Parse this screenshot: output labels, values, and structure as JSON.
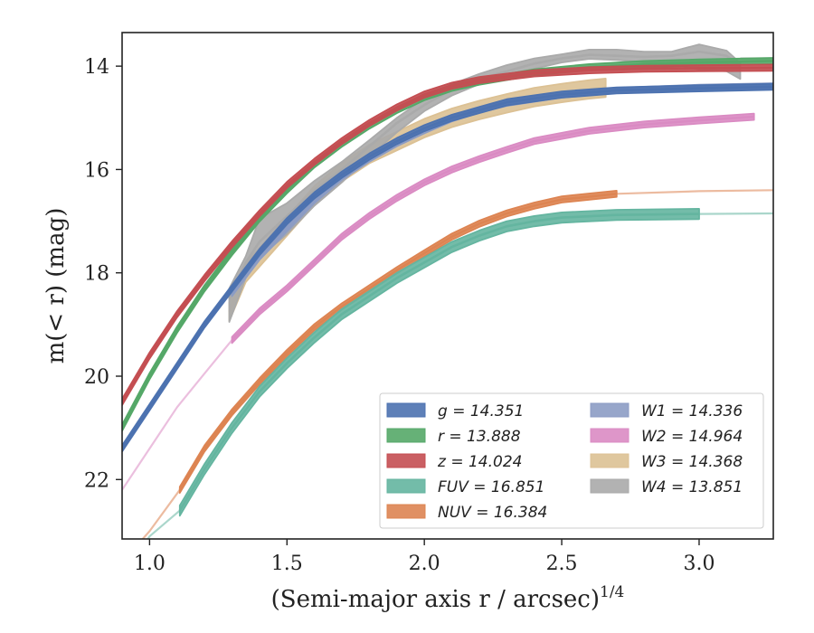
{
  "chart_data": {
    "type": "line",
    "xlabel": "(Semi-major axis r / arcsec)",
    "xlabel_sup": "1/4",
    "ylabel": "m(< r) (mag)",
    "xlim": [
      0.9,
      3.27
    ],
    "ylim": [
      23.15,
      13.35
    ],
    "y_inverted": true,
    "grid": false,
    "legend_placement": "lower-right",
    "x_ticks": [
      "1.0",
      "1.5",
      "2.0",
      "2.5",
      "3.0"
    ],
    "y_ticks": [
      "14",
      "16",
      "18",
      "20",
      "22"
    ],
    "legend": [
      "g = 14.351",
      "r = 13.888",
      "z = 14.024",
      "FUV = 16.851",
      "NUV = 16.384",
      "W1 = 14.336",
      "W2 = 14.964",
      "W3 = 14.368",
      "W4 = 13.851"
    ],
    "series": [
      {
        "name": "g = 14.351",
        "color": "#4c72b0",
        "band": 0.06,
        "solid_range": [
          0.9,
          3.27
        ],
        "x": [
          0.9,
          1.0,
          1.1,
          1.2,
          1.3,
          1.4,
          1.5,
          1.6,
          1.7,
          1.8,
          1.9,
          2.0,
          2.1,
          2.2,
          2.3,
          2.5,
          2.7,
          3.0,
          3.27
        ],
        "y": [
          21.4,
          20.6,
          19.8,
          19.0,
          18.3,
          17.6,
          17.0,
          16.5,
          16.1,
          15.75,
          15.45,
          15.2,
          15.0,
          14.85,
          14.7,
          14.55,
          14.47,
          14.43,
          14.4
        ]
      },
      {
        "name": "r = 13.888",
        "color": "#55a868",
        "band": 0.06,
        "solid_range": [
          0.9,
          3.27
        ],
        "x": [
          0.9,
          1.0,
          1.1,
          1.2,
          1.3,
          1.4,
          1.5,
          1.6,
          1.7,
          1.8,
          1.9,
          2.0,
          2.1,
          2.2,
          2.4,
          2.6,
          2.8,
          3.0,
          3.27
        ],
        "y": [
          21.0,
          20.0,
          19.1,
          18.3,
          17.6,
          16.95,
          16.4,
          15.9,
          15.5,
          15.15,
          14.85,
          14.6,
          14.42,
          14.3,
          14.12,
          14.02,
          13.96,
          13.93,
          13.9
        ]
      },
      {
        "name": "z = 14.024",
        "color": "#c44e52",
        "band": 0.06,
        "solid_range": [
          0.9,
          3.27
        ],
        "x": [
          0.9,
          1.0,
          1.1,
          1.2,
          1.3,
          1.4,
          1.5,
          1.6,
          1.7,
          1.8,
          1.9,
          2.0,
          2.1,
          2.2,
          2.4,
          2.6,
          2.8,
          3.0,
          3.27
        ],
        "y": [
          20.5,
          19.6,
          18.8,
          18.1,
          17.45,
          16.85,
          16.3,
          15.85,
          15.45,
          15.1,
          14.8,
          14.55,
          14.38,
          14.27,
          14.14,
          14.08,
          14.05,
          14.04,
          14.03
        ]
      },
      {
        "name": "FUV = 16.851",
        "color": "#64b5a0",
        "band": 0.1,
        "solid_range": [
          1.11,
          3.13
        ],
        "x": [
          0.95,
          1.0,
          1.11,
          1.2,
          1.3,
          1.4,
          1.5,
          1.6,
          1.7,
          1.8,
          1.9,
          2.0,
          2.1,
          2.2,
          2.3,
          2.4,
          2.5,
          2.7,
          3.0,
          3.27
        ],
        "y": [
          23.5,
          23.1,
          22.6,
          21.8,
          21.0,
          20.3,
          19.75,
          19.25,
          18.8,
          18.45,
          18.1,
          17.8,
          17.5,
          17.28,
          17.1,
          17.0,
          16.93,
          16.88,
          16.86,
          16.85
        ]
      },
      {
        "name": "NUV = 16.384",
        "color": "#dd8452",
        "band": 0.06,
        "solid_range": [
          1.11,
          2.95
        ],
        "x": [
          0.9,
          1.0,
          1.11,
          1.2,
          1.3,
          1.4,
          1.5,
          1.6,
          1.7,
          1.8,
          1.9,
          2.0,
          2.1,
          2.2,
          2.3,
          2.4,
          2.5,
          2.7,
          3.0,
          3.27
        ],
        "y": [
          23.6,
          23.0,
          22.2,
          21.4,
          20.7,
          20.1,
          19.55,
          19.05,
          18.65,
          18.3,
          17.95,
          17.62,
          17.3,
          17.05,
          16.85,
          16.7,
          16.58,
          16.47,
          16.42,
          16.4
        ]
      },
      {
        "name": "W1 = 14.336",
        "color": "#8c9cc4",
        "band": 0.05,
        "solid_range": [
          1.3,
          3.27
        ],
        "x": [
          1.3,
          1.4,
          1.5,
          1.6,
          1.7,
          1.8,
          1.9,
          2.0,
          2.1,
          2.2,
          2.3,
          2.5,
          2.7,
          3.0,
          3.27
        ],
        "y": [
          18.4,
          17.7,
          17.15,
          16.6,
          16.15,
          15.8,
          15.5,
          15.25,
          15.02,
          14.85,
          14.72,
          14.56,
          14.47,
          14.41,
          14.38
        ]
      },
      {
        "name": "W2 = 14.964",
        "color": "#da8bc3",
        "band": 0.06,
        "solid_range": [
          1.3,
          3.2
        ],
        "x": [
          0.9,
          1.0,
          1.1,
          1.2,
          1.3,
          1.4,
          1.5,
          1.6,
          1.7,
          1.8,
          1.9,
          2.0,
          2.1,
          2.2,
          2.3,
          2.4,
          2.6,
          2.8,
          3.0,
          3.2
        ],
        "y": [
          22.2,
          21.4,
          20.6,
          19.95,
          19.3,
          18.75,
          18.3,
          17.8,
          17.3,
          16.9,
          16.55,
          16.25,
          16.0,
          15.8,
          15.62,
          15.45,
          15.25,
          15.13,
          15.05,
          14.98
        ]
      },
      {
        "name": "W3 = 14.368",
        "color": "#dcc194",
        "band": 0.18,
        "solid_range": [
          1.29,
          2.66
        ],
        "x": [
          1.29,
          1.35,
          1.4,
          1.5,
          1.6,
          1.7,
          1.8,
          1.9,
          2.0,
          2.1,
          2.2,
          2.3,
          2.4,
          2.5,
          2.6,
          2.66
        ],
        "y": [
          18.75,
          18.0,
          17.7,
          17.1,
          16.5,
          16.05,
          15.7,
          15.45,
          15.2,
          15.0,
          14.85,
          14.72,
          14.6,
          14.52,
          14.45,
          14.42
        ]
      },
      {
        "name": "W4 = 13.851",
        "color": "#aaaaaa",
        "band_upper": [
          0.2,
          0.12,
          0.45,
          0.25,
          0.18,
          0.15,
          0.12,
          0.1,
          0.12,
          0.1,
          0.1,
          0.12,
          0.1,
          0.08,
          0.1,
          0.12,
          0.1,
          0.08,
          0.14,
          0.1,
          0.06
        ],
        "solid_range": [
          1.29,
          3.15
        ],
        "x": [
          1.29,
          1.35,
          1.4,
          1.5,
          1.6,
          1.7,
          1.8,
          1.9,
          2.0,
          2.1,
          2.2,
          2.3,
          2.4,
          2.5,
          2.6,
          2.7,
          2.8,
          2.9,
          3.0,
          3.1,
          3.15
        ],
        "y": [
          18.5,
          17.8,
          17.4,
          16.9,
          16.4,
          16.0,
          15.55,
          15.1,
          14.75,
          14.45,
          14.25,
          14.1,
          13.95,
          13.85,
          13.78,
          13.8,
          13.82,
          13.8,
          13.72,
          13.8,
          14.0
        ],
        "band_lower": [
          0.45,
          0.3,
          0.3,
          0.35,
          0.3,
          0.25,
          0.2,
          0.18,
          0.12,
          0.12,
          0.1,
          0.1,
          0.1,
          0.08,
          0.08,
          0.08,
          0.1,
          0.15,
          0.35,
          0.3,
          0.25
        ],
        "tail_x": [
          3.15,
          3.27
        ],
        "tail_y": [
          13.85,
          13.85
        ]
      }
    ]
  }
}
